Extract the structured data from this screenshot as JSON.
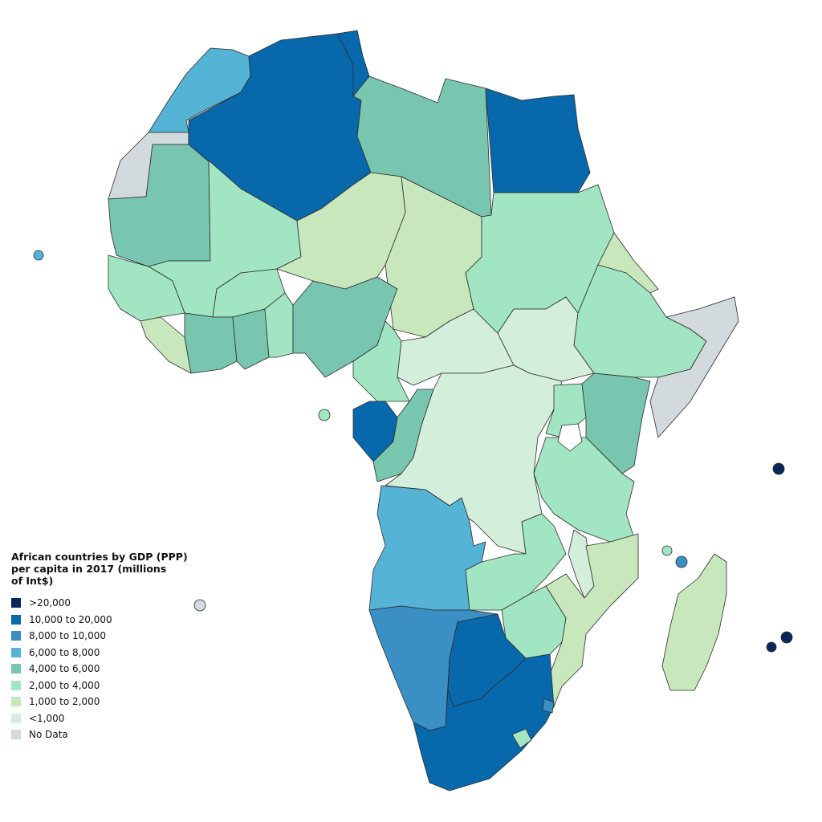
{
  "legend": {
    "title": "African countries by GDP (PPP)\nper capita in 2017 (millions\nof Int$)",
    "items": [
      {
        "label": ">20,000",
        "color": "#08285a"
      },
      {
        "label": "10,000 to 20,000",
        "color": "#0868ac"
      },
      {
        "label": "8,000 to 10,000",
        "color": "#3a8fc4"
      },
      {
        "label": "6,000 to 8,000",
        "color": "#55b4d6"
      },
      {
        "label": "4,000 to 6,000",
        "color": "#79c6b0"
      },
      {
        "label": "2,000 to 4,000",
        "color": "#a1e5c3"
      },
      {
        "label": "1,000 to 2,000",
        "color": "#c9e7bd"
      },
      {
        "label": "<1,000",
        "color": "#d3eedb"
      },
      {
        "label": "No Data",
        "color": "#d3dadd"
      }
    ]
  },
  "colors": {
    "background": "#ffffff",
    "border": "#2b2b2b"
  }
}
